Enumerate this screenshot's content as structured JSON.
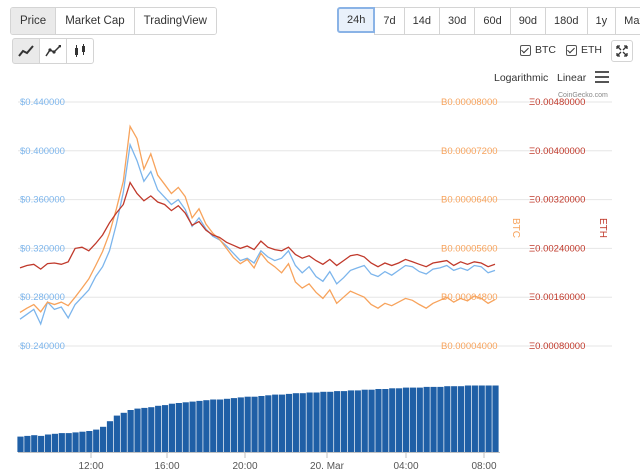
{
  "tabs": [
    {
      "label": "Price",
      "active": true
    },
    {
      "label": "Market Cap",
      "active": false
    },
    {
      "label": "TradingView",
      "active": false
    }
  ],
  "ranges": [
    {
      "label": "24h",
      "active": true
    },
    {
      "label": "7d",
      "active": false
    },
    {
      "label": "14d",
      "active": false
    },
    {
      "label": "30d",
      "active": false
    },
    {
      "label": "60d",
      "active": false
    },
    {
      "label": "90d",
      "active": false
    },
    {
      "label": "180d",
      "active": false
    },
    {
      "label": "1y",
      "active": false
    },
    {
      "label": "Max",
      "active": false
    }
  ],
  "chart_types": [
    "line-chart-icon",
    "area-line-chart-icon",
    "candlestick-icon"
  ],
  "legend": {
    "btc": "BTC",
    "eth": "ETH"
  },
  "scale": {
    "log": "Logarithmic",
    "linear": "Linear"
  },
  "credit": "CoinGecko.com",
  "colors": {
    "usd": "#7cb5ec",
    "btc": "#f7a35c",
    "eth": "#c0392b",
    "volume": "#1f5fa6",
    "grid": "#e6e6e6"
  },
  "chart_data": {
    "type": "line",
    "x_ticks": [
      "12:00",
      "16:00",
      "20:00",
      "20. Mar",
      "04:00",
      "08:00"
    ],
    "y_usd": {
      "ticks": [
        "$0.240000",
        "$0.280000",
        "$0.320000",
        "$0.360000",
        "$0.400000",
        "$0.440000"
      ],
      "range": [
        0.24,
        0.44
      ]
    },
    "y_btc": {
      "label": "BTC",
      "ticks": [
        "B0.00004000",
        "B0.00004800",
        "B0.00005600",
        "B0.00006400",
        "B0.00007200",
        "B0.00008000"
      ],
      "range": [
        4e-05,
        8e-05
      ]
    },
    "y_eth": {
      "label": "ETH",
      "ticks": [
        "Ξ0.00080000",
        "Ξ0.00160000",
        "Ξ0.00240000",
        "Ξ0.00320000",
        "Ξ0.00400000",
        "Ξ0.00480000"
      ],
      "range": [
        0.0008,
        0.0048
      ]
    },
    "series": [
      {
        "name": "USD",
        "axis": "usd",
        "values": [
          0.262,
          0.266,
          0.27,
          0.258,
          0.276,
          0.27,
          0.272,
          0.263,
          0.274,
          0.28,
          0.286,
          0.297,
          0.305,
          0.318,
          0.34,
          0.366,
          0.405,
          0.392,
          0.375,
          0.383,
          0.368,
          0.362,
          0.356,
          0.36,
          0.352,
          0.338,
          0.345,
          0.336,
          0.33,
          0.327,
          0.322,
          0.316,
          0.31,
          0.312,
          0.308,
          0.318,
          0.313,
          0.31,
          0.312,
          0.318,
          0.306,
          0.3,
          0.305,
          0.297,
          0.293,
          0.301,
          0.291,
          0.296,
          0.302,
          0.304,
          0.306,
          0.299,
          0.297,
          0.301,
          0.298,
          0.302,
          0.306,
          0.305,
          0.301,
          0.299,
          0.303,
          0.304,
          0.306,
          0.302,
          0.304,
          0.302,
          0.306,
          0.305,
          0.3,
          0.302
        ]
      },
      {
        "name": "BTC",
        "axis": "btc",
        "values": [
          4.55e-05,
          4.62e-05,
          4.68e-05,
          4.56e-05,
          4.72e-05,
          4.68e-05,
          4.72e-05,
          4.66e-05,
          4.8e-05,
          4.95e-05,
          5.1e-05,
          5.32e-05,
          5.55e-05,
          5.85e-05,
          6.25e-05,
          6.7e-05,
          7.6e-05,
          7.4e-05,
          6.9e-05,
          7.15e-05,
          6.8e-05,
          6.65e-05,
          6.5e-05,
          6.6e-05,
          6.45e-05,
          6.1e-05,
          6.25e-05,
          6e-05,
          5.85e-05,
          5.75e-05,
          5.6e-05,
          5.45e-05,
          5.35e-05,
          5.42e-05,
          5.28e-05,
          5.52e-05,
          5.38e-05,
          5.3e-05,
          5.2e-05,
          5.35e-05,
          5.05e-05,
          4.95e-05,
          5.02e-05,
          4.88e-05,
          4.78e-05,
          4.92e-05,
          4.7e-05,
          4.8e-05,
          4.9e-05,
          4.85e-05,
          4.8e-05,
          4.68e-05,
          4.62e-05,
          4.7e-05,
          4.66e-05,
          4.72e-05,
          4.78e-05,
          4.75e-05,
          4.68e-05,
          4.62e-05,
          4.7e-05,
          4.75e-05,
          4.8e-05,
          4.72e-05,
          4.78e-05,
          4.74e-05,
          4.82e-05,
          4.78e-05,
          4.7e-05,
          4.76e-05
        ]
      },
      {
        "name": "ETH",
        "axis": "eth",
        "values": [
          0.00208,
          0.00212,
          0.00214,
          0.00206,
          0.00215,
          0.00216,
          0.00214,
          0.00218,
          0.0024,
          0.00242,
          0.00236,
          0.00248,
          0.00262,
          0.00282,
          0.00298,
          0.00312,
          0.00348,
          0.0033,
          0.00318,
          0.00326,
          0.00316,
          0.00312,
          0.00302,
          0.0031,
          0.00298,
          0.00278,
          0.00284,
          0.0027,
          0.00262,
          0.00258,
          0.0025,
          0.00245,
          0.0024,
          0.00244,
          0.00238,
          0.00252,
          0.00242,
          0.00238,
          0.00236,
          0.00242,
          0.0023,
          0.00224,
          0.00228,
          0.0022,
          0.00214,
          0.00222,
          0.00212,
          0.0022,
          0.00228,
          0.0023,
          0.00226,
          0.00216,
          0.0021,
          0.00216,
          0.00212,
          0.00216,
          0.00222,
          0.00218,
          0.00214,
          0.0021,
          0.00216,
          0.00218,
          0.0022,
          0.00212,
          0.00218,
          0.00214,
          0.00218,
          0.00216,
          0.0021,
          0.00214
        ]
      },
      {
        "name": "Volume",
        "axis": "volume",
        "values": [
          0.22,
          0.23,
          0.24,
          0.23,
          0.25,
          0.26,
          0.27,
          0.27,
          0.28,
          0.29,
          0.3,
          0.32,
          0.36,
          0.44,
          0.52,
          0.56,
          0.6,
          0.62,
          0.63,
          0.64,
          0.66,
          0.67,
          0.69,
          0.7,
          0.71,
          0.72,
          0.73,
          0.74,
          0.75,
          0.75,
          0.76,
          0.77,
          0.78,
          0.79,
          0.79,
          0.8,
          0.81,
          0.82,
          0.82,
          0.83,
          0.84,
          0.84,
          0.85,
          0.85,
          0.86,
          0.86,
          0.87,
          0.87,
          0.88,
          0.88,
          0.89,
          0.89,
          0.9,
          0.9,
          0.91,
          0.91,
          0.92,
          0.92,
          0.92,
          0.93,
          0.93,
          0.93,
          0.94,
          0.94,
          0.94,
          0.95,
          0.95,
          0.95,
          0.95,
          0.95
        ]
      }
    ],
    "grid": true
  }
}
